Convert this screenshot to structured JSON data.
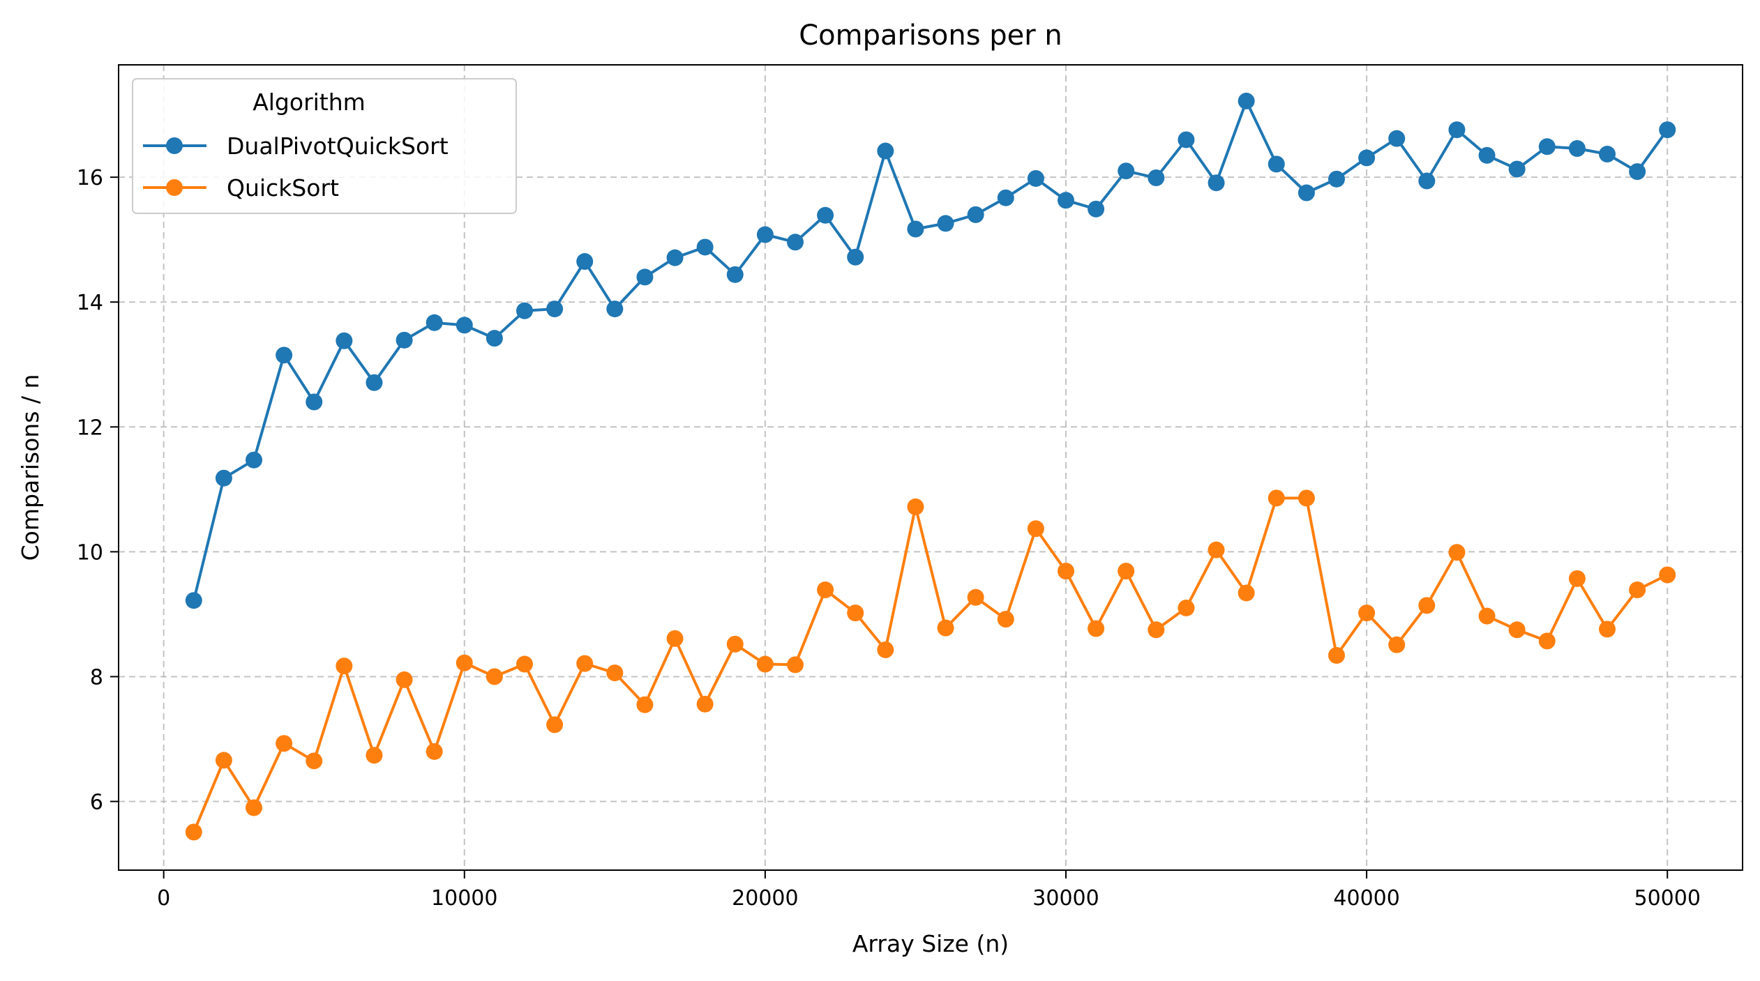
{
  "chart_data": {
    "type": "line",
    "title": "Comparisons per n",
    "xlabel": "Array Size (n)",
    "ylabel": "Comparisons / n",
    "xlim": [
      -1500,
      52500
    ],
    "ylim": [
      4.9,
      17.8
    ],
    "xticks": [
      0,
      10000,
      20000,
      30000,
      40000,
      50000
    ],
    "yticks": [
      6,
      8,
      10,
      12,
      14,
      16
    ],
    "grid": true,
    "legend": {
      "title": "Algorithm",
      "placement": "top-left"
    },
    "x": [
      1000,
      2000,
      3000,
      4000,
      5000,
      6000,
      7000,
      8000,
      9000,
      10000,
      11000,
      12000,
      13000,
      14000,
      15000,
      16000,
      17000,
      18000,
      19000,
      20000,
      21000,
      22000,
      23000,
      24000,
      25000,
      26000,
      27000,
      28000,
      29000,
      30000,
      31000,
      32000,
      33000,
      34000,
      35000,
      36000,
      37000,
      38000,
      39000,
      40000,
      41000,
      42000,
      43000,
      44000,
      45000,
      46000,
      47000,
      48000,
      49000,
      50000
    ],
    "series": [
      {
        "name": "DualPivotQuickSort",
        "color": "#1f77b4",
        "values": [
          9.22,
          11.18,
          11.47,
          13.15,
          12.4,
          13.38,
          12.71,
          13.39,
          13.67,
          13.63,
          13.42,
          13.86,
          13.89,
          14.65,
          13.89,
          14.4,
          14.71,
          14.88,
          14.44,
          15.08,
          14.96,
          15.39,
          14.72,
          16.42,
          15.17,
          15.26,
          15.4,
          15.67,
          15.98,
          15.63,
          15.49,
          16.1,
          15.99,
          16.6,
          15.91,
          17.22,
          16.21,
          15.75,
          15.97,
          16.31,
          16.62,
          15.94,
          16.76,
          16.35,
          16.13,
          16.49,
          16.46,
          16.37,
          16.09,
          16.76
        ]
      },
      {
        "name": "QuickSort",
        "color": "#ff7f0e",
        "values": [
          5.51,
          6.66,
          5.9,
          6.93,
          6.65,
          8.17,
          6.74,
          7.95,
          6.8,
          8.22,
          8.0,
          8.2,
          7.23,
          8.21,
          8.06,
          7.55,
          8.61,
          7.56,
          8.52,
          8.2,
          8.19,
          9.39,
          9.02,
          8.43,
          10.72,
          8.78,
          9.27,
          8.92,
          10.37,
          9.69,
          8.77,
          9.69,
          8.75,
          9.1,
          10.03,
          9.34,
          10.86,
          10.86,
          8.34,
          9.02,
          8.51,
          9.14,
          9.99,
          8.97,
          8.75,
          8.57,
          9.57,
          8.76,
          9.39,
          9.63
        ]
      }
    ]
  }
}
